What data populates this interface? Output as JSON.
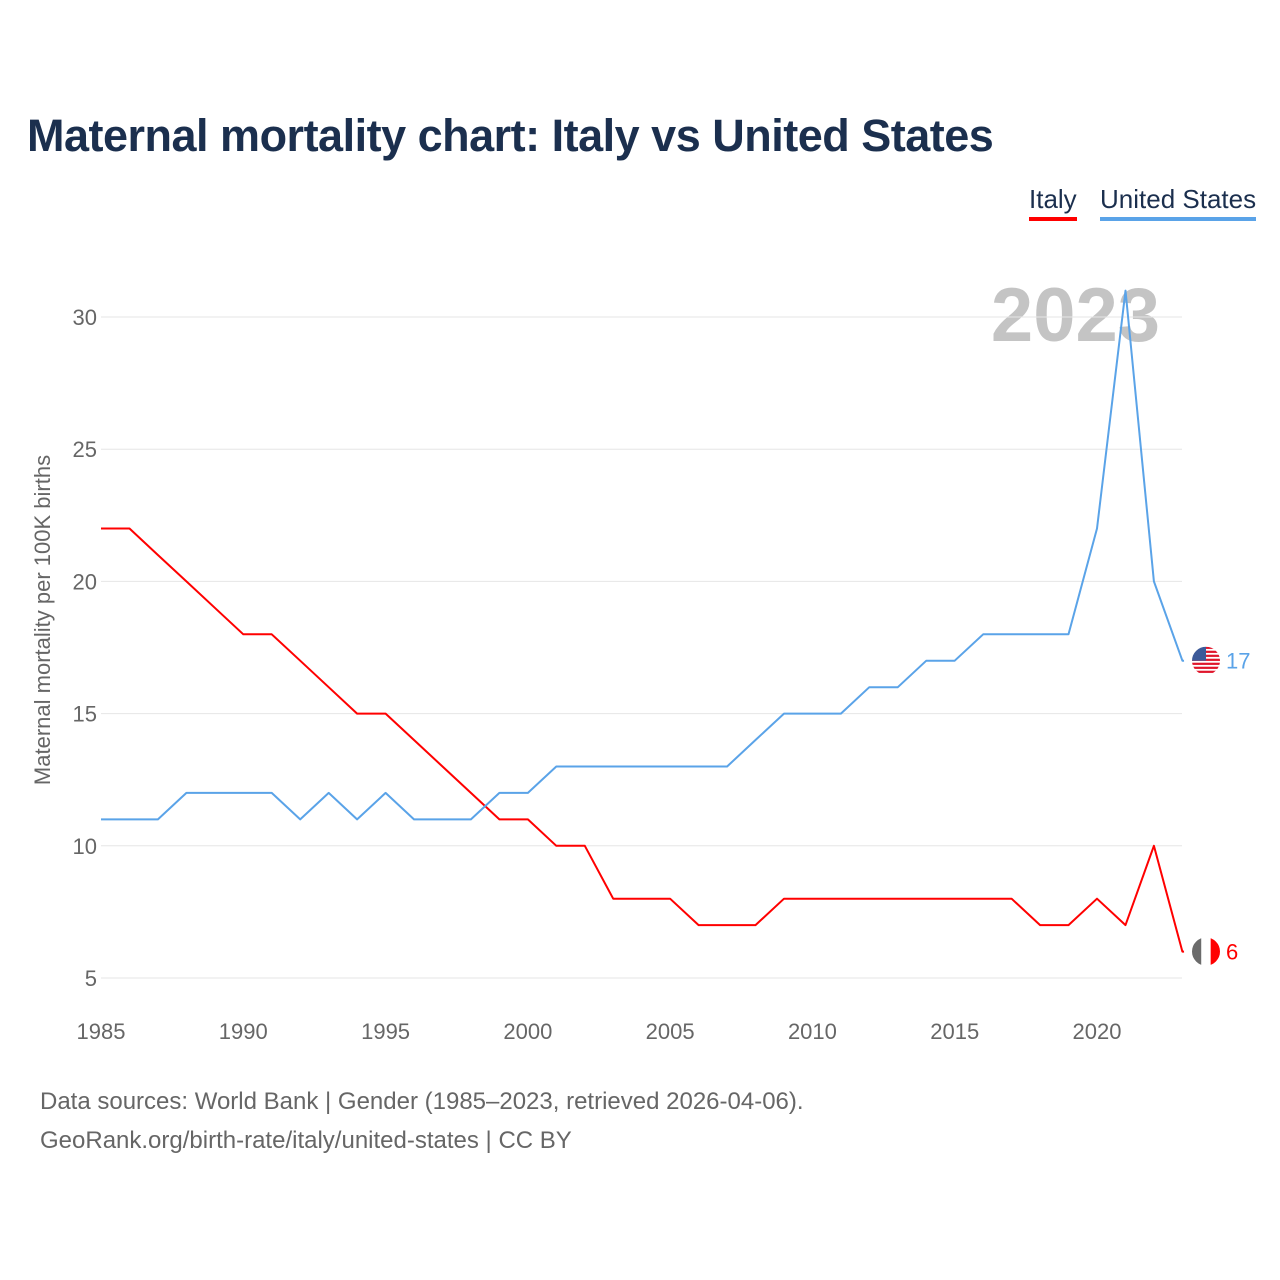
{
  "title": "Maternal mortality chart: Italy vs United States",
  "legend": [
    {
      "label": "Italy",
      "color": "#ff0000"
    },
    {
      "label": "United States",
      "color": "#5aa3e8"
    }
  ],
  "year_watermark": "2023",
  "footer": {
    "line1": "Data sources: World Bank | Gender (1985–2023, retrieved 2026-04-06).",
    "line2": "GeoRank.org/birth-rate/italy/united-states | CC BY"
  },
  "chart_data": {
    "type": "line",
    "title": "Maternal mortality chart: Italy vs United States",
    "xlabel": "",
    "ylabel": "Maternal mortality per 100K births",
    "xlim": [
      1985,
      2023
    ],
    "ylim": [
      5,
      30
    ],
    "xticks": [
      "1985",
      "1990",
      "1995",
      "2000",
      "2005",
      "2010",
      "2015",
      "2020"
    ],
    "yticks": [
      "5",
      "10",
      "15",
      "20",
      "25",
      "30"
    ],
    "grid": true,
    "legend_position": "top-right",
    "x": [
      1985,
      1986,
      1987,
      1988,
      1989,
      1990,
      1991,
      1992,
      1993,
      1994,
      1995,
      1996,
      1997,
      1998,
      1999,
      2000,
      2001,
      2002,
      2003,
      2004,
      2005,
      2006,
      2007,
      2008,
      2009,
      2010,
      2011,
      2012,
      2013,
      2014,
      2015,
      2016,
      2017,
      2018,
      2019,
      2020,
      2021,
      2022,
      2023
    ],
    "series": [
      {
        "name": "Italy",
        "color": "#ff0000",
        "end_label": "6",
        "values": [
          22,
          22,
          21,
          20,
          19,
          18,
          18,
          17,
          16,
          15,
          15,
          14,
          13,
          12,
          11,
          11,
          10,
          10,
          8,
          8,
          8,
          7,
          7,
          7,
          8,
          8,
          8,
          8,
          8,
          8,
          8,
          8,
          8,
          7,
          7,
          8,
          7,
          10,
          6
        ]
      },
      {
        "name": "United States",
        "color": "#5aa3e8",
        "end_label": "17",
        "values": [
          11,
          11,
          11,
          12,
          12,
          12,
          12,
          11,
          12,
          11,
          12,
          11,
          11,
          11,
          12,
          12,
          13,
          13,
          13,
          13,
          13,
          13,
          13,
          14,
          15,
          15,
          15,
          16,
          16,
          17,
          17,
          18,
          18,
          18,
          18,
          22,
          31,
          20,
          17
        ]
      }
    ]
  }
}
